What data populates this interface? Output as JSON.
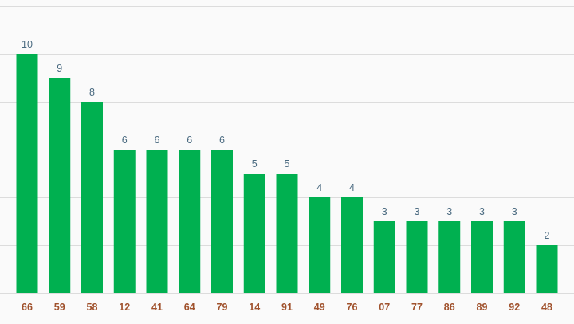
{
  "chart_data": {
    "type": "bar",
    "categories": [
      "66",
      "59",
      "58",
      "12",
      "41",
      "64",
      "79",
      "14",
      "91",
      "49",
      "76",
      "07",
      "77",
      "86",
      "89",
      "92",
      "48"
    ],
    "values": [
      10,
      9,
      8,
      6,
      6,
      6,
      6,
      5,
      5,
      4,
      4,
      3,
      3,
      3,
      3,
      3,
      2
    ],
    "title": "",
    "xlabel": "",
    "ylabel": "",
    "ylim": [
      0,
      12
    ],
    "grid": true,
    "legend": "none",
    "data_labels": true,
    "colors": {
      "bar": "#00b050",
      "value_label": "#4a6a80",
      "category_label": "#a0522d",
      "grid": "#dcdcdc",
      "background": "#fafafa"
    }
  }
}
